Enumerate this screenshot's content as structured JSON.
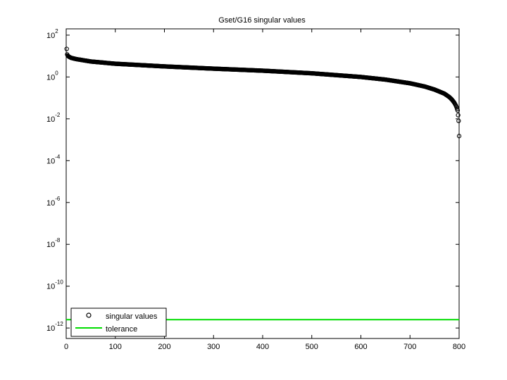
{
  "chart_data": {
    "type": "scatter",
    "title": "Gset/G16 singular values",
    "xlabel": "",
    "ylabel": "",
    "xlim": [
      0,
      800
    ],
    "ylim_log10": [
      -12.5,
      2.3
    ],
    "y_scale": "log",
    "grid": false,
    "legend_position": "bottom-left",
    "x_ticks": [
      0,
      100,
      200,
      300,
      400,
      500,
      600,
      700,
      800
    ],
    "x_tick_labels": [
      "0",
      "100",
      "200",
      "300",
      "400",
      "500",
      "600",
      "700",
      "800"
    ],
    "y_ticks_log10": [
      2,
      0,
      -2,
      -4,
      -6,
      -8,
      -10,
      -12
    ],
    "y_tick_labels": [
      {
        "base": "10",
        "exp": "2"
      },
      {
        "base": "10",
        "exp": "0"
      },
      {
        "base": "10",
        "exp": "-2"
      },
      {
        "base": "10",
        "exp": "-4"
      },
      {
        "base": "10",
        "exp": "-6"
      },
      {
        "base": "10",
        "exp": "-8"
      },
      {
        "base": "10",
        "exp": "-10"
      },
      {
        "base": "10",
        "exp": "-12"
      }
    ],
    "series": [
      {
        "name": "singular values",
        "marker": "circle",
        "color": "#000000",
        "n_points": 800,
        "profile_x": [
          1,
          2,
          3,
          5,
          10,
          20,
          50,
          100,
          200,
          300,
          400,
          500,
          600,
          650,
          700,
          730,
          750,
          770,
          780,
          785,
          790,
          793,
          795,
          797,
          798,
          799,
          800
        ],
        "profile_y": [
          22.0,
          12.0,
          10.5,
          9.5,
          8.2,
          7.2,
          5.5,
          4.3,
          3.2,
          2.5,
          2.0,
          1.5,
          1.0,
          0.75,
          0.5,
          0.35,
          0.25,
          0.16,
          0.11,
          0.085,
          0.06,
          0.045,
          0.035,
          0.025,
          0.015,
          0.008,
          0.0015
        ]
      },
      {
        "name": "tolerance",
        "type": "line",
        "color": "#00dd00",
        "x": [
          0,
          800
        ],
        "y": [
          2.5e-12,
          2.5e-12
        ]
      }
    ]
  }
}
